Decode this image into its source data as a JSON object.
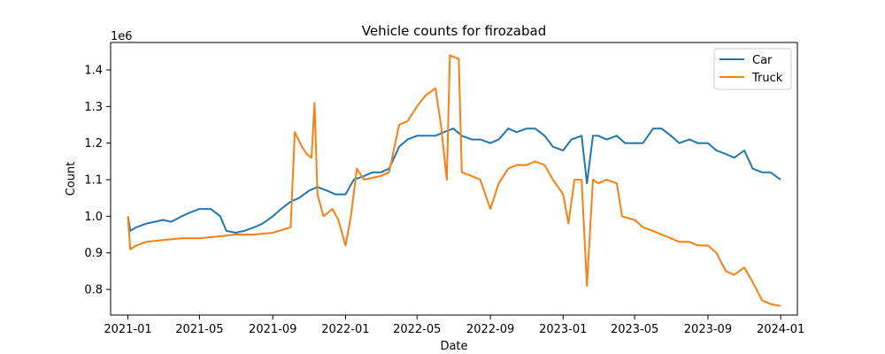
{
  "chart_data": {
    "type": "line",
    "title": "Vehicle counts for firozabad",
    "xlabel": "Date",
    "ylabel": "Count",
    "y_offset_label": "1e6",
    "ylim": [
      0.73,
      1.475
    ],
    "xlim": [
      "2020-12-03",
      "2024-01-29"
    ],
    "x_ticks": [
      "2021-01",
      "2021-05",
      "2021-09",
      "2022-01",
      "2022-05",
      "2022-09",
      "2023-01",
      "2023-05",
      "2023-09",
      "2024-01"
    ],
    "y_ticks": [
      0.8,
      0.9,
      1.0,
      1.1,
      1.2,
      1.3,
      1.4
    ],
    "y_tick_labels": [
      "0.8",
      "0.9",
      "1.0",
      "1.1",
      "1.2",
      "1.3",
      "1.4"
    ],
    "y_unit_multiplier": 1000000,
    "grid": false,
    "legend_position": "top-right",
    "series": [
      {
        "name": "Car",
        "color": "#1f77b4",
        "points": [
          [
            "2021-01-01",
            1.0
          ],
          [
            "2021-01-05",
            0.96
          ],
          [
            "2021-01-15",
            0.97
          ],
          [
            "2021-02-01",
            0.98
          ],
          [
            "2021-02-15",
            0.985
          ],
          [
            "2021-03-01",
            0.99
          ],
          [
            "2021-03-15",
            0.985
          ],
          [
            "2021-04-01",
            1.0
          ],
          [
            "2021-04-15",
            1.01
          ],
          [
            "2021-05-01",
            1.02
          ],
          [
            "2021-05-20",
            1.02
          ],
          [
            "2021-06-05",
            1.0
          ],
          [
            "2021-06-15",
            0.96
          ],
          [
            "2021-07-01",
            0.955
          ],
          [
            "2021-07-15",
            0.96
          ],
          [
            "2021-08-01",
            0.97
          ],
          [
            "2021-08-15",
            0.98
          ],
          [
            "2021-09-01",
            1.0
          ],
          [
            "2021-09-15",
            1.02
          ],
          [
            "2021-10-01",
            1.04
          ],
          [
            "2021-10-15",
            1.05
          ],
          [
            "2021-11-01",
            1.07
          ],
          [
            "2021-11-15",
            1.08
          ],
          [
            "2021-12-01",
            1.07
          ],
          [
            "2021-12-15",
            1.06
          ],
          [
            "2022-01-01",
            1.06
          ],
          [
            "2022-01-15",
            1.1
          ],
          [
            "2022-02-01",
            1.11
          ],
          [
            "2022-02-15",
            1.12
          ],
          [
            "2022-03-01",
            1.12
          ],
          [
            "2022-03-15",
            1.13
          ],
          [
            "2022-04-01",
            1.19
          ],
          [
            "2022-04-15",
            1.21
          ],
          [
            "2022-05-01",
            1.22
          ],
          [
            "2022-05-15",
            1.22
          ],
          [
            "2022-06-01",
            1.22
          ],
          [
            "2022-06-15",
            1.23
          ],
          [
            "2022-07-01",
            1.24
          ],
          [
            "2022-07-15",
            1.22
          ],
          [
            "2022-08-01",
            1.21
          ],
          [
            "2022-08-15",
            1.21
          ],
          [
            "2022-09-01",
            1.2
          ],
          [
            "2022-09-15",
            1.21
          ],
          [
            "2022-10-01",
            1.24
          ],
          [
            "2022-10-15",
            1.23
          ],
          [
            "2022-11-01",
            1.24
          ],
          [
            "2022-11-15",
            1.24
          ],
          [
            "2022-12-01",
            1.22
          ],
          [
            "2022-12-15",
            1.19
          ],
          [
            "2023-01-01",
            1.18
          ],
          [
            "2023-01-15",
            1.21
          ],
          [
            "2023-02-01",
            1.22
          ],
          [
            "2023-02-10",
            1.09
          ],
          [
            "2023-02-20",
            1.22
          ],
          [
            "2023-03-01",
            1.22
          ],
          [
            "2023-03-15",
            1.21
          ],
          [
            "2023-04-01",
            1.22
          ],
          [
            "2023-04-15",
            1.2
          ],
          [
            "2023-05-01",
            1.2
          ],
          [
            "2023-05-15",
            1.2
          ],
          [
            "2023-06-01",
            1.24
          ],
          [
            "2023-06-15",
            1.24
          ],
          [
            "2023-07-01",
            1.22
          ],
          [
            "2023-07-15",
            1.2
          ],
          [
            "2023-08-01",
            1.21
          ],
          [
            "2023-08-15",
            1.2
          ],
          [
            "2023-09-01",
            1.2
          ],
          [
            "2023-09-15",
            1.18
          ],
          [
            "2023-10-01",
            1.17
          ],
          [
            "2023-10-15",
            1.16
          ],
          [
            "2023-11-01",
            1.18
          ],
          [
            "2023-11-15",
            1.13
          ],
          [
            "2023-12-01",
            1.12
          ],
          [
            "2023-12-15",
            1.12
          ],
          [
            "2024-01-01",
            1.1
          ]
        ]
      },
      {
        "name": "Truck",
        "color": "#ff7f0e",
        "points": [
          [
            "2021-01-01",
            1.0
          ],
          [
            "2021-01-05",
            0.91
          ],
          [
            "2021-01-15",
            0.92
          ],
          [
            "2021-02-01",
            0.93
          ],
          [
            "2021-03-01",
            0.935
          ],
          [
            "2021-04-01",
            0.94
          ],
          [
            "2021-05-01",
            0.94
          ],
          [
            "2021-06-01",
            0.945
          ],
          [
            "2021-07-01",
            0.95
          ],
          [
            "2021-08-01",
            0.95
          ],
          [
            "2021-09-01",
            0.955
          ],
          [
            "2021-10-01",
            0.97
          ],
          [
            "2021-10-08",
            1.23
          ],
          [
            "2021-10-20",
            1.19
          ],
          [
            "2021-10-28",
            1.17
          ],
          [
            "2021-11-05",
            1.16
          ],
          [
            "2021-11-10",
            1.31
          ],
          [
            "2021-11-15",
            1.06
          ],
          [
            "2021-11-25",
            1.0
          ],
          [
            "2021-12-10",
            1.02
          ],
          [
            "2021-12-20",
            0.99
          ],
          [
            "2022-01-01",
            0.92
          ],
          [
            "2022-01-10",
            1.0
          ],
          [
            "2022-01-20",
            1.13
          ],
          [
            "2022-02-01",
            1.1
          ],
          [
            "2022-03-01",
            1.11
          ],
          [
            "2022-03-15",
            1.12
          ],
          [
            "2022-04-01",
            1.25
          ],
          [
            "2022-04-15",
            1.26
          ],
          [
            "2022-05-01",
            1.3
          ],
          [
            "2022-05-15",
            1.33
          ],
          [
            "2022-06-01",
            1.35
          ],
          [
            "2022-06-10",
            1.25
          ],
          [
            "2022-06-20",
            1.1
          ],
          [
            "2022-06-25",
            1.44
          ],
          [
            "2022-07-10",
            1.43
          ],
          [
            "2022-07-15",
            1.12
          ],
          [
            "2022-08-01",
            1.11
          ],
          [
            "2022-08-15",
            1.1
          ],
          [
            "2022-09-01",
            1.02
          ],
          [
            "2022-09-15",
            1.09
          ],
          [
            "2022-10-01",
            1.13
          ],
          [
            "2022-10-15",
            1.14
          ],
          [
            "2022-11-01",
            1.14
          ],
          [
            "2022-11-15",
            1.15
          ],
          [
            "2022-12-01",
            1.14
          ],
          [
            "2022-12-15",
            1.1
          ],
          [
            "2023-01-01",
            1.06
          ],
          [
            "2023-01-10",
            0.98
          ],
          [
            "2023-01-20",
            1.1
          ],
          [
            "2023-02-01",
            1.1
          ],
          [
            "2023-02-10",
            0.81
          ],
          [
            "2023-02-20",
            1.1
          ],
          [
            "2023-03-01",
            1.09
          ],
          [
            "2023-03-15",
            1.1
          ],
          [
            "2023-04-01",
            1.09
          ],
          [
            "2023-04-10",
            1.0
          ],
          [
            "2023-05-01",
            0.99
          ],
          [
            "2023-05-15",
            0.97
          ],
          [
            "2023-06-01",
            0.96
          ],
          [
            "2023-06-15",
            0.95
          ],
          [
            "2023-07-01",
            0.94
          ],
          [
            "2023-07-15",
            0.93
          ],
          [
            "2023-08-01",
            0.93
          ],
          [
            "2023-08-15",
            0.92
          ],
          [
            "2023-09-01",
            0.92
          ],
          [
            "2023-09-15",
            0.9
          ],
          [
            "2023-10-01",
            0.85
          ],
          [
            "2023-10-15",
            0.84
          ],
          [
            "2023-11-01",
            0.86
          ],
          [
            "2023-11-15",
            0.82
          ],
          [
            "2023-12-01",
            0.77
          ],
          [
            "2023-12-15",
            0.76
          ],
          [
            "2024-01-01",
            0.755
          ]
        ]
      }
    ]
  }
}
